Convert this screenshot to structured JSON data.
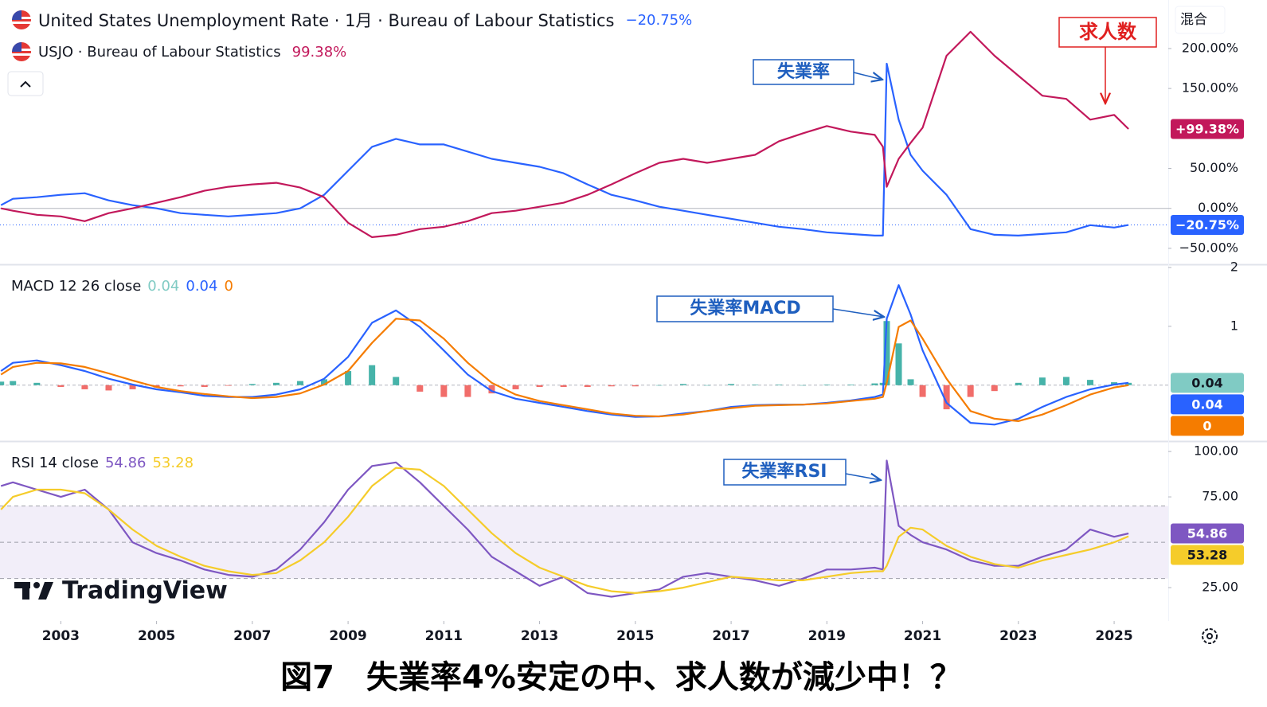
{
  "header": {
    "scale_mode": "混合",
    "logo": "TradingView"
  },
  "caption": "図7　失業率4%安定の中、求人数が減少中！？",
  "annotations": [
    {
      "text": "失業率"
    },
    {
      "text": "失業率MACD"
    },
    {
      "text": "失業率RSI"
    },
    {
      "text": "求人数"
    }
  ],
  "chart_data": [
    {
      "type": "line",
      "x": [
        2001.75,
        2002,
        2002.5,
        2003,
        2003.5,
        2004,
        2004.5,
        2005,
        2005.5,
        2006,
        2006.5,
        2007,
        2007.5,
        2008,
        2008.5,
        2009,
        2009.5,
        2010,
        2010.5,
        2011,
        2011.5,
        2012,
        2012.5,
        2013,
        2013.5,
        2014,
        2014.5,
        2015,
        2015.5,
        2016,
        2016.5,
        2017,
        2017.5,
        2018,
        2018.5,
        2019,
        2019.5,
        2020,
        2020.17,
        2020.25,
        2020.5,
        2020.75,
        2021,
        2021.5,
        2022,
        2022.5,
        2023,
        2023.5,
        2024,
        2024.5,
        2025,
        2025.3
      ],
      "xlim": [
        2001.73,
        2026.13
      ],
      "ylim": [
        -70,
        260.7
      ],
      "yticks": [
        {
          "value": 200,
          "label": "200.00%"
        },
        {
          "value": 150,
          "label": "150.00%"
        },
        {
          "value": 50,
          "label": "50.00%"
        },
        {
          "value": 0,
          "label": "0.00%"
        },
        {
          "value": -50,
          "label": "−50.00%"
        }
      ],
      "baseline": 0,
      "series": [
        {
          "name": "United States Unemployment Rate · 1月 · Bureau of Labour Statistics",
          "color": "#2962ff",
          "price_line": true,
          "legend_value": "−20.75%",
          "values": [
            4,
            12,
            14,
            17,
            19,
            10,
            4,
            0,
            -6,
            -8,
            -10,
            -8,
            -6,
            0,
            17,
            47,
            77,
            87,
            80,
            80,
            71,
            62,
            57,
            52,
            44,
            30,
            17,
            10,
            2,
            -3,
            -8,
            -13,
            -18,
            -23,
            -26,
            -30,
            -32,
            -34,
            -34,
            181,
            111,
            67,
            47,
            17,
            -26,
            -33,
            -34,
            -32,
            -30,
            -21,
            -24,
            -20.75
          ]
        },
        {
          "name": "USJO · Bureau of Labour Statistics",
          "color": "#c2185b",
          "legend_value": "99.38%",
          "badge": "+99.38%",
          "values": [
            0,
            -3,
            -8,
            -10,
            -16,
            -6,
            0,
            7,
            14,
            22,
            27,
            30,
            32,
            26,
            14,
            -18,
            -36,
            -33,
            -26,
            -23,
            -16,
            -6,
            -3,
            2,
            7,
            17,
            30,
            44,
            57,
            62,
            57,
            62,
            67,
            84,
            94,
            103,
            96,
            92,
            77,
            27,
            62,
            82,
            101,
            191,
            221,
            191,
            166,
            141,
            137,
            111,
            117,
            99.38
          ]
        }
      ]
    },
    {
      "type": "line",
      "title": "MACD 12 26 close",
      "x": [
        2001.75,
        2002,
        2002.5,
        2003,
        2003.5,
        2004,
        2004.5,
        2005,
        2005.5,
        2006,
        2006.5,
        2007,
        2007.5,
        2008,
        2008.5,
        2009,
        2009.5,
        2010,
        2010.5,
        2011,
        2011.5,
        2012,
        2012.5,
        2013,
        2013.5,
        2014,
        2014.5,
        2015,
        2015.5,
        2016,
        2016.5,
        2017,
        2017.5,
        2018,
        2018.5,
        2019,
        2019.5,
        2020,
        2020.17,
        2020.25,
        2020.5,
        2020.75,
        2021,
        2021.5,
        2022,
        2022.5,
        2023,
        2023.5,
        2024,
        2024.5,
        2025,
        2025.3
      ],
      "xlim": [
        2001.73,
        2026.13
      ],
      "ylim": [
        -0.95,
        2.04
      ],
      "yticks": [
        1,
        2
      ],
      "baseline": 0,
      "baseline_dashed": true,
      "series": [
        {
          "style": "histogram",
          "color": "#80cbc4",
          "up_color": "#26a69a",
          "down_color": "#ef5350",
          "legend_value": 0.04,
          "values": [
            0.06,
            0.07,
            0.04,
            -0.03,
            -0.07,
            -0.09,
            -0.07,
            -0.04,
            -0.02,
            -0.03,
            -0.01,
            0.02,
            0.04,
            0.07,
            0.1,
            0.24,
            0.34,
            0.14,
            -0.11,
            -0.2,
            -0.2,
            -0.14,
            -0.07,
            -0.03,
            -0.03,
            -0.03,
            -0.02,
            -0.02,
            0,
            0.02,
            0,
            0.02,
            0.01,
            0.01,
            0,
            0.01,
            0.01,
            0.03,
            0.04,
            1.09,
            0.71,
            0.1,
            -0.2,
            -0.41,
            -0.2,
            -0.1,
            0.04,
            0.13,
            0.14,
            0.09,
            0.05,
            0.04
          ]
        },
        {
          "color": "#2962ff",
          "legend_value": 0.04,
          "values": [
            0.24,
            0.38,
            0.42,
            0.34,
            0.24,
            0.11,
            0.01,
            -0.07,
            -0.12,
            -0.18,
            -0.2,
            -0.2,
            -0.16,
            -0.07,
            0.11,
            0.48,
            1.06,
            1.27,
            0.99,
            0.59,
            0.18,
            -0.1,
            -0.23,
            -0.3,
            -0.37,
            -0.44,
            -0.5,
            -0.54,
            -0.53,
            -0.48,
            -0.44,
            -0.37,
            -0.34,
            -0.33,
            -0.33,
            -0.3,
            -0.26,
            -0.2,
            -0.16,
            1.13,
            1.7,
            1.2,
            0.59,
            -0.3,
            -0.64,
            -0.67,
            -0.57,
            -0.37,
            -0.2,
            -0.07,
            0.01,
            0.04
          ]
        },
        {
          "color": "#f57c00",
          "legend_value": 0,
          "values": [
            0.18,
            0.31,
            0.38,
            0.37,
            0.31,
            0.2,
            0.08,
            -0.03,
            -0.1,
            -0.15,
            -0.19,
            -0.22,
            -0.2,
            -0.14,
            0.01,
            0.24,
            0.72,
            1.13,
            1.1,
            0.79,
            0.38,
            0.04,
            -0.16,
            -0.27,
            -0.34,
            -0.41,
            -0.48,
            -0.52,
            -0.53,
            -0.5,
            -0.44,
            -0.39,
            -0.35,
            -0.34,
            -0.33,
            -0.31,
            -0.27,
            -0.23,
            -0.2,
            0.04,
            0.99,
            1.1,
            0.79,
            0.11,
            -0.44,
            -0.57,
            -0.61,
            -0.5,
            -0.34,
            -0.16,
            -0.04,
            0
          ]
        }
      ]
    },
    {
      "type": "line",
      "title": "RSI 14 close",
      "x": [
        2001.75,
        2002,
        2002.5,
        2003,
        2003.5,
        2004,
        2004.5,
        2005,
        2005.5,
        2006,
        2006.5,
        2007,
        2007.5,
        2008,
        2008.5,
        2009,
        2009.5,
        2010,
        2010.5,
        2011,
        2011.5,
        2012,
        2012.5,
        2013,
        2013.5,
        2014,
        2014.5,
        2015,
        2015.5,
        2016,
        2016.5,
        2017,
        2017.5,
        2018,
        2018.5,
        2019,
        2019.5,
        2020,
        2020.17,
        2020.25,
        2020.5,
        2020.75,
        2021,
        2021.5,
        2022,
        2022.5,
        2023,
        2023.5,
        2024,
        2024.5,
        2025,
        2025.3
      ],
      "xlim": [
        2001.73,
        2026.13
      ],
      "xticks": [
        2003,
        2005,
        2007,
        2009,
        2011,
        2013,
        2015,
        2017,
        2019,
        2021,
        2023,
        2025
      ],
      "ylim": [
        6.6,
        105.3
      ],
      "yticks": [
        {
          "value": 100,
          "label": "100.00"
        },
        {
          "value": 75,
          "label": "75.00"
        },
        {
          "value": 25,
          "label": "25.00"
        }
      ],
      "bands": [
        30,
        70
      ],
      "midline": 50,
      "band_color": "#7e57c2",
      "series": [
        {
          "color": "#7e57c2",
          "legend_value": 54.86,
          "values": [
            81,
            83,
            79,
            75,
            79,
            68,
            50,
            44,
            40,
            35,
            32,
            31,
            35,
            46,
            61,
            79,
            92,
            94,
            83,
            70,
            57,
            42,
            34,
            26,
            31,
            22,
            20,
            22,
            24,
            31,
            33,
            31,
            29,
            26,
            30,
            35,
            35,
            36,
            35,
            95,
            59,
            54,
            50,
            46,
            40,
            37,
            37,
            42,
            46,
            57,
            53,
            54.86
          ]
        },
        {
          "color": "#f5cc2a",
          "legend_value": 53.28,
          "values": [
            68,
            75,
            79,
            79,
            77,
            68,
            57,
            48,
            42,
            37,
            34,
            32,
            33,
            40,
            50,
            64,
            81,
            91,
            90,
            81,
            68,
            55,
            44,
            36,
            31,
            26,
            23,
            22,
            23,
            25,
            28,
            31,
            30,
            29,
            29,
            31,
            33,
            34,
            34,
            37,
            53,
            58,
            57,
            48,
            42,
            38,
            36,
            40,
            43,
            46,
            50,
            53.28
          ]
        }
      ]
    }
  ]
}
